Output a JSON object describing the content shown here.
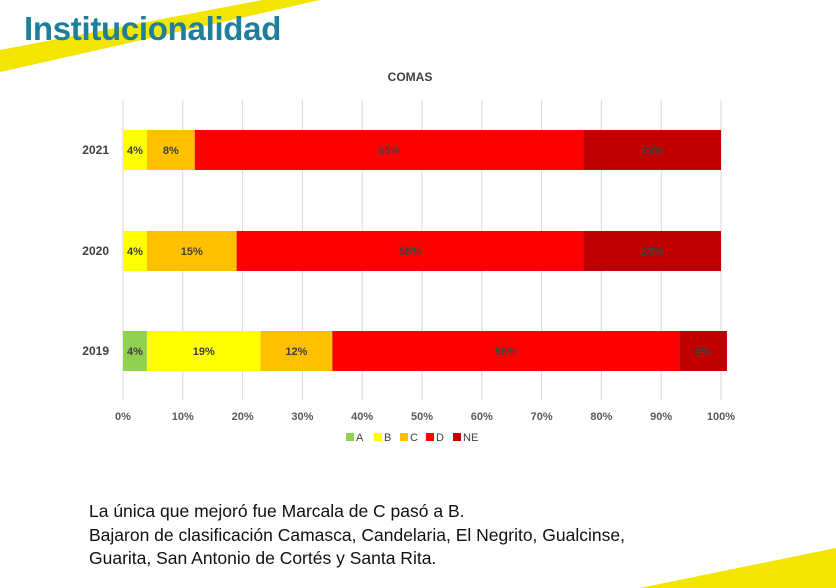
{
  "slide": {
    "title": "Institucionalidad",
    "accent_color": "#f2e500",
    "title_color": "#1f7e9a",
    "body_lines": [
      "La única que mejoró fue Marcala de C pasó a B.",
      "Bajaron de clasificación Camasca, Candelaria, El Negrito, Gualcinse,",
      "Guarita, San Antonio de Cortés y Santa Rita."
    ]
  },
  "chart_data": {
    "type": "bar",
    "orientation": "horizontal",
    "stacked": "percent",
    "title": "COMAS",
    "xlabel": "",
    "ylabel": "",
    "categories": [
      "2021",
      "2020",
      "2019"
    ],
    "xlim": [
      0,
      100
    ],
    "x_ticks": [
      "0%",
      "10%",
      "20%",
      "30%",
      "40%",
      "50%",
      "60%",
      "70%",
      "80%",
      "90%",
      "100%"
    ],
    "grid": "vertical",
    "legend_position": "bottom",
    "series": [
      {
        "name": "A",
        "color": "#92d050",
        "values": [
          0,
          0,
          4
        ],
        "labels": [
          "",
          "",
          "4%"
        ]
      },
      {
        "name": "B",
        "color": "#ffff00",
        "values": [
          4,
          4,
          19
        ],
        "labels": [
          "4%",
          "4%",
          "19%"
        ]
      },
      {
        "name": "C",
        "color": "#ffc000",
        "values": [
          8,
          15,
          12
        ],
        "labels": [
          "8%",
          "15%",
          "12%"
        ]
      },
      {
        "name": "D",
        "color": "#ff0000",
        "values": [
          65,
          58,
          58
        ],
        "labels": [
          "65%",
          "58%",
          "58%"
        ]
      },
      {
        "name": "NE",
        "color": "#c00000",
        "values": [
          23,
          23,
          8
        ],
        "labels": [
          "23%",
          "23%",
          "8%"
        ]
      }
    ]
  }
}
